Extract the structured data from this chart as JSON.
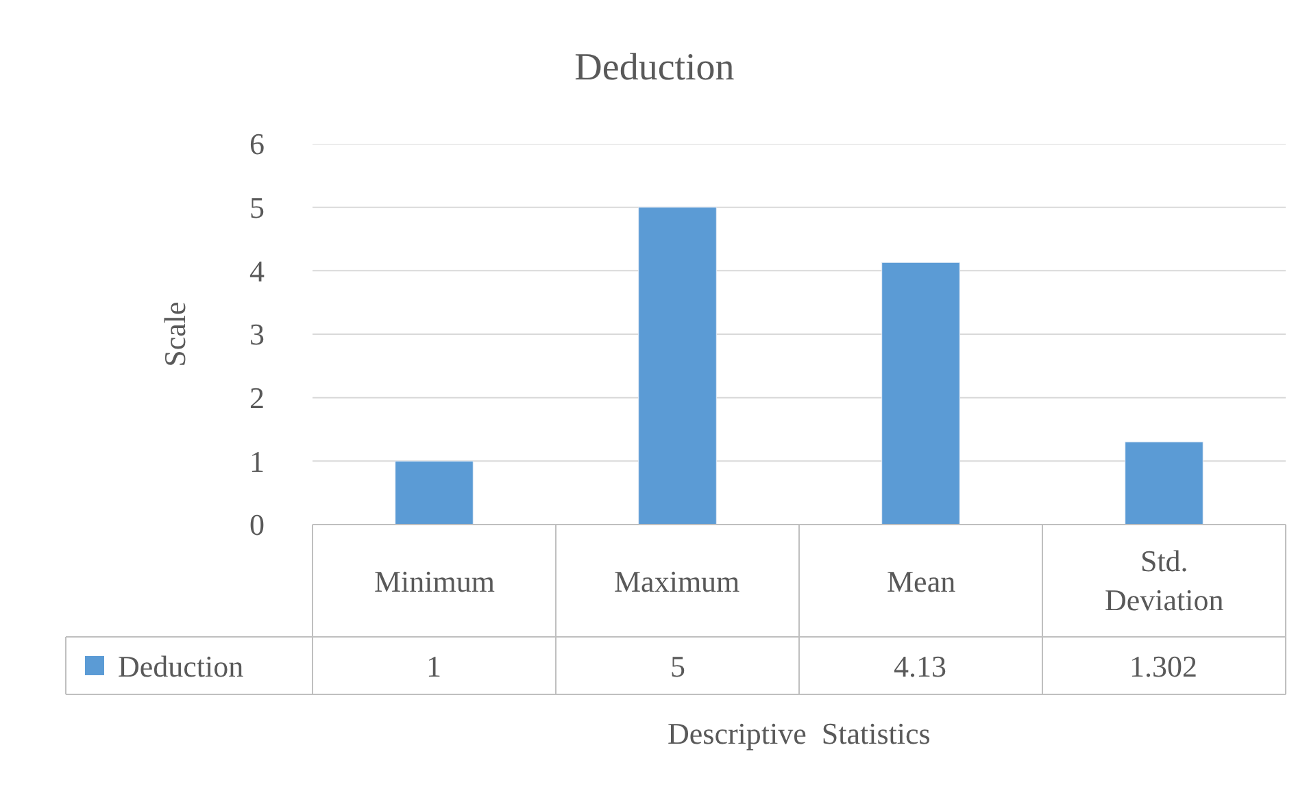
{
  "chart_data": {
    "type": "bar",
    "title": "Deduction",
    "xlabel": "Descriptive  Statistics",
    "ylabel": "Scale",
    "categories": [
      "Minimum",
      "Maximum",
      "Mean",
      "Std. Deviation"
    ],
    "series": [
      {
        "name": "Deduction",
        "color": "#5b9bd5",
        "values": [
          1,
          5,
          4.13,
          1.302
        ]
      }
    ],
    "ylim": [
      0,
      6
    ],
    "yticks": [
      0,
      1,
      2,
      3,
      4,
      5,
      6
    ],
    "grid": "y",
    "data_labels": true
  }
}
